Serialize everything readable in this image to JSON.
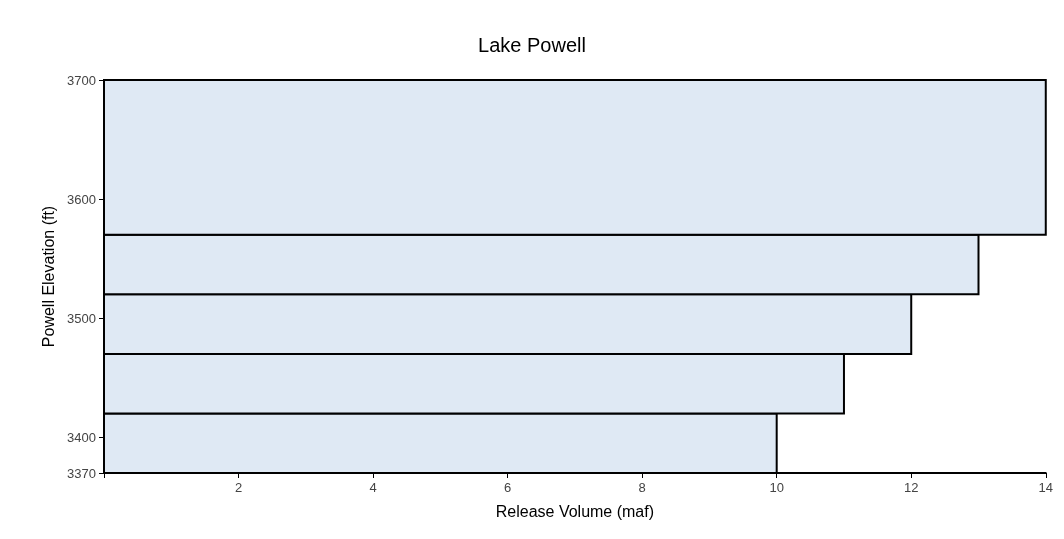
{
  "chart_data": {
    "type": "histogram",
    "orientation": "horizontal",
    "title": "Lake Powell",
    "xlabel": "Release Volume (maf)",
    "ylabel": "Powell Elevation (ft)",
    "bins": [
      3370,
      3420,
      3470,
      3520,
      3570,
      3700
    ],
    "values": [
      10,
      11,
      12,
      13,
      14
    ],
    "color": "#dfe9f4",
    "xlim": [
      0,
      14
    ],
    "xticks": [
      {
        "value": 0,
        "label": null
      },
      2,
      4,
      6,
      8,
      10,
      12,
      14
    ],
    "ylim": [
      3370,
      3700
    ],
    "yticks": [
      3370,
      3400,
      3500,
      3600,
      3700
    ]
  }
}
